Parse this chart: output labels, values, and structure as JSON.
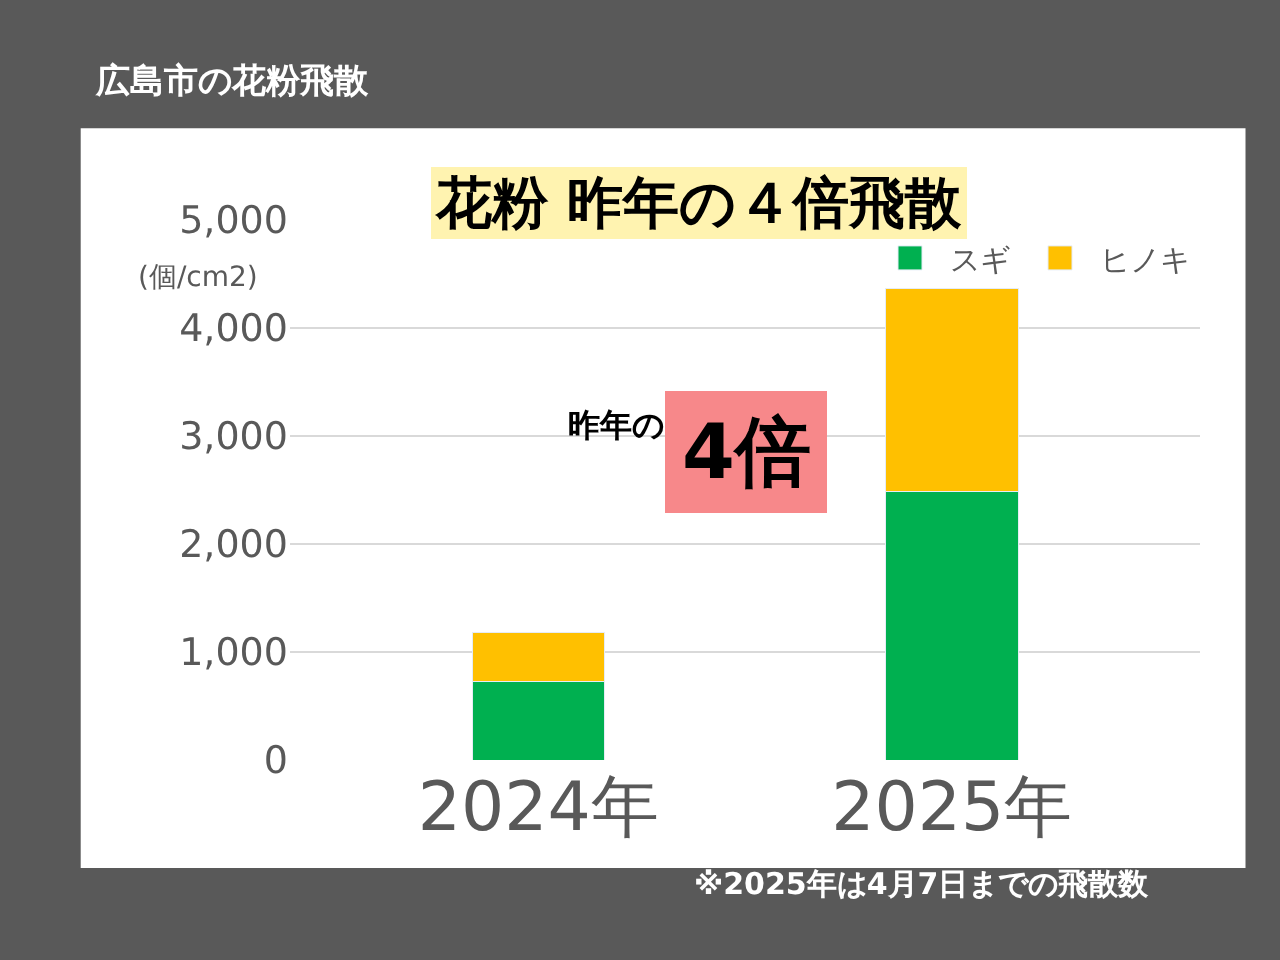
{
  "chart_data": {
    "type": "bar",
    "title": "広島市の花粉飛散",
    "subtitle": "花粉 昨年の４倍飛散",
    "ylabel": "(個/cm2)",
    "categories": [
      "2024年",
      "2025年"
    ],
    "stacked": true,
    "series": [
      {
        "name": "スギ",
        "color": "#00b050",
        "values": [
          730,
          2490
        ]
      },
      {
        "name": "ヒノキ",
        "color": "#ffc000",
        "values": [
          450,
          1880
        ]
      }
    ],
    "ylim": [
      0,
      5000
    ],
    "yticks": [
      0,
      {
        "value": 1000,
        "label": "1,000"
      },
      {
        "value": 2000,
        "label": "2,000"
      },
      {
        "value": 3000,
        "label": "3,000"
      },
      {
        "value": 4000,
        "label": "4,000"
      },
      {
        "value": 5000,
        "label": "5,000"
      }
    ],
    "grid": "y",
    "legend": "top right",
    "annotations": [
      "昨年の",
      "4倍",
      "※2025年は4月7日までの飛散数"
    ]
  }
}
